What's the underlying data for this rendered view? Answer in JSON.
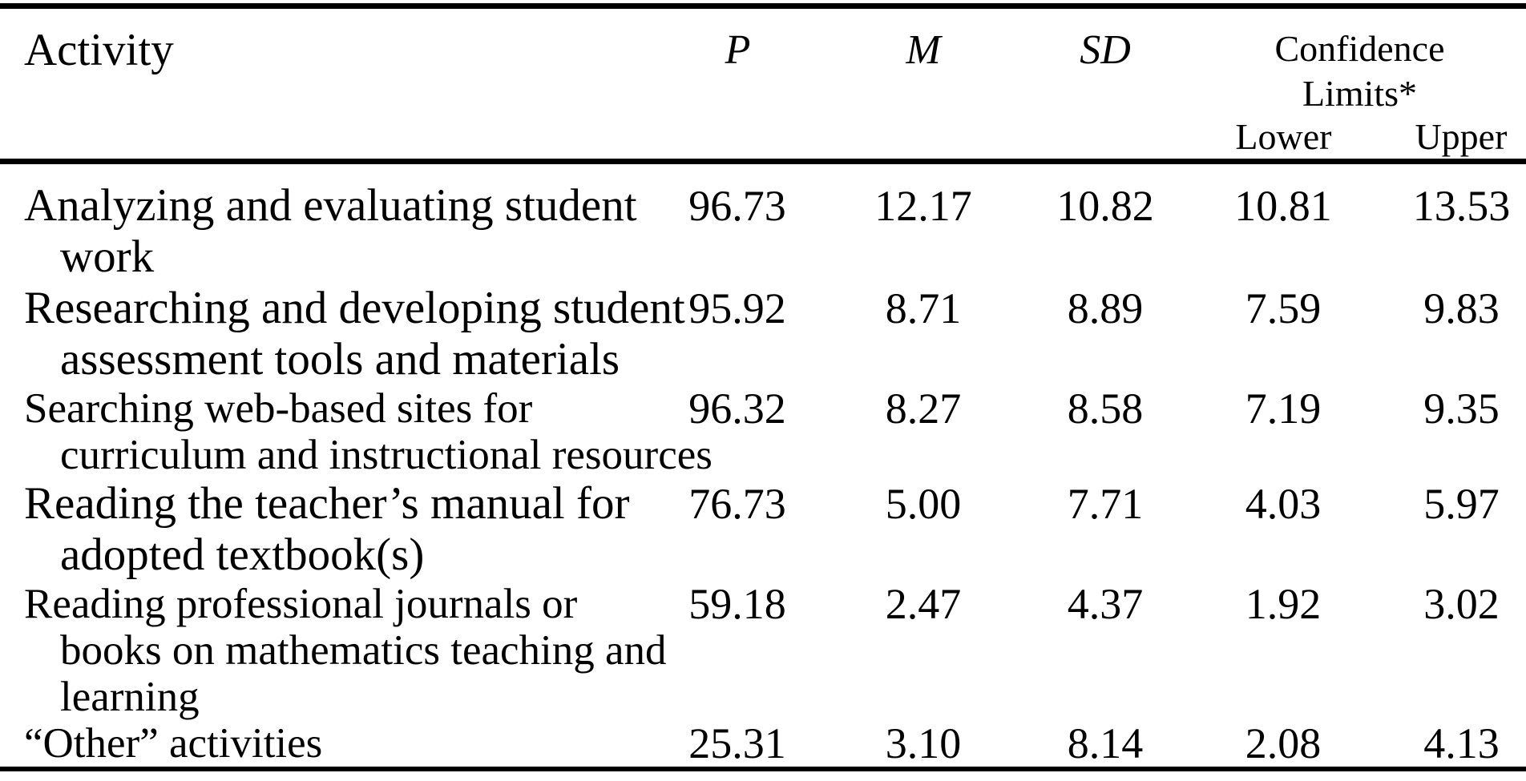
{
  "table": {
    "columns": {
      "activity": "Activity",
      "p": "P",
      "m": "M",
      "sd": "SD",
      "confidence": "Confidence Limits*",
      "lower": "Lower",
      "upper": "Upper"
    },
    "rows": [
      {
        "activity_lines": [
          "Analyzing and evaluating student",
          "work"
        ],
        "p": "96.73",
        "m": "12.17",
        "sd": "10.82",
        "lower": "10.81",
        "upper": "13.53"
      },
      {
        "activity_lines": [
          "Researching and developing student",
          "assessment tools and materials"
        ],
        "p": "95.92",
        "m": "8.71",
        "sd": "8.89",
        "lower": "7.59",
        "upper": "9.83"
      },
      {
        "activity_lines": [
          "Searching web-based sites for",
          "curriculum and instructional resources"
        ],
        "p": "96.32",
        "m": "8.27",
        "sd": "8.58",
        "lower": "7.19",
        "upper": "9.35"
      },
      {
        "activity_lines": [
          "Reading the teacher’s manual for",
          "adopted textbook(s)"
        ],
        "p": "76.73",
        "m": "5.00",
        "sd": "7.71",
        "lower": "4.03",
        "upper": "5.97"
      },
      {
        "activity_lines": [
          "Reading professional journals or",
          "books on mathematics teaching and",
          "learning"
        ],
        "p": "59.18",
        "m": "2.47",
        "sd": "4.37",
        "lower": "1.92",
        "upper": "3.02"
      },
      {
        "activity_lines": [
          "“Other” activities"
        ],
        "p": "25.31",
        "m": "3.10",
        "sd": "8.14",
        "lower": "2.08",
        "upper": "4.13"
      }
    ]
  },
  "colors": {
    "text": "#000000",
    "background": "#ffffff",
    "rule": "#000000"
  }
}
